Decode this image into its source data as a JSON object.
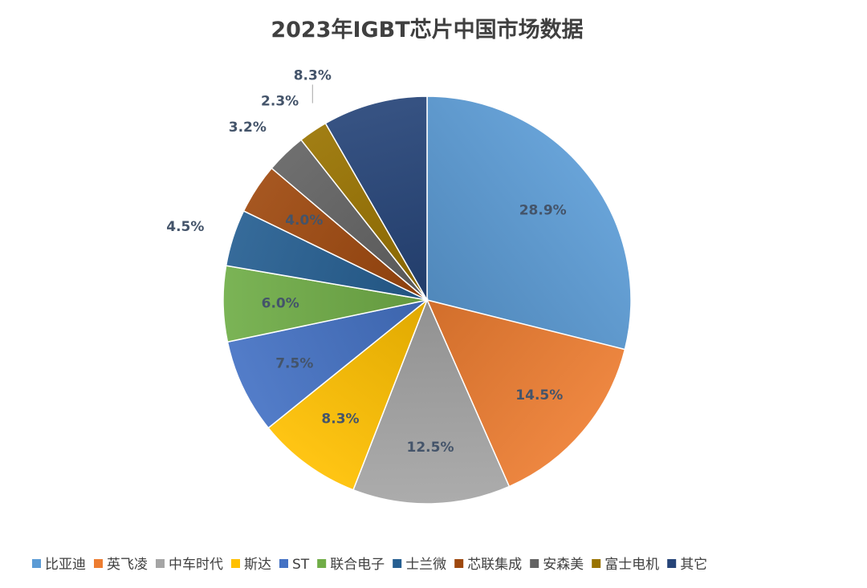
{
  "chart_data": {
    "type": "pie",
    "title": "2023年IGBT芯片中国市场数据",
    "categories": [
      "比亚迪",
      "英飞凌",
      "中车时代",
      "斯达",
      "ST",
      "联合电子",
      "士兰微",
      "芯联集成",
      "安森美",
      "富士电机",
      "其它"
    ],
    "values": [
      28.9,
      14.5,
      12.5,
      8.3,
      7.5,
      6.0,
      4.5,
      4.0,
      3.2,
      2.3,
      8.3
    ],
    "labels": [
      "28.9%",
      "14.5%",
      "12.5%",
      "8.3%",
      "7.5%",
      "6.0%",
      "4.5%",
      "4.0%",
      "3.2%",
      "2.3%",
      "8.3%"
    ],
    "colors": [
      "#5b9bd5",
      "#ed7d31",
      "#a5a5a5",
      "#ffc000",
      "#4472c4",
      "#70ad47",
      "#255e91",
      "#9e480e",
      "#636363",
      "#997300",
      "#264478"
    ],
    "legend": "bottom",
    "start_angle": "12 o'clock, clockwise"
  }
}
